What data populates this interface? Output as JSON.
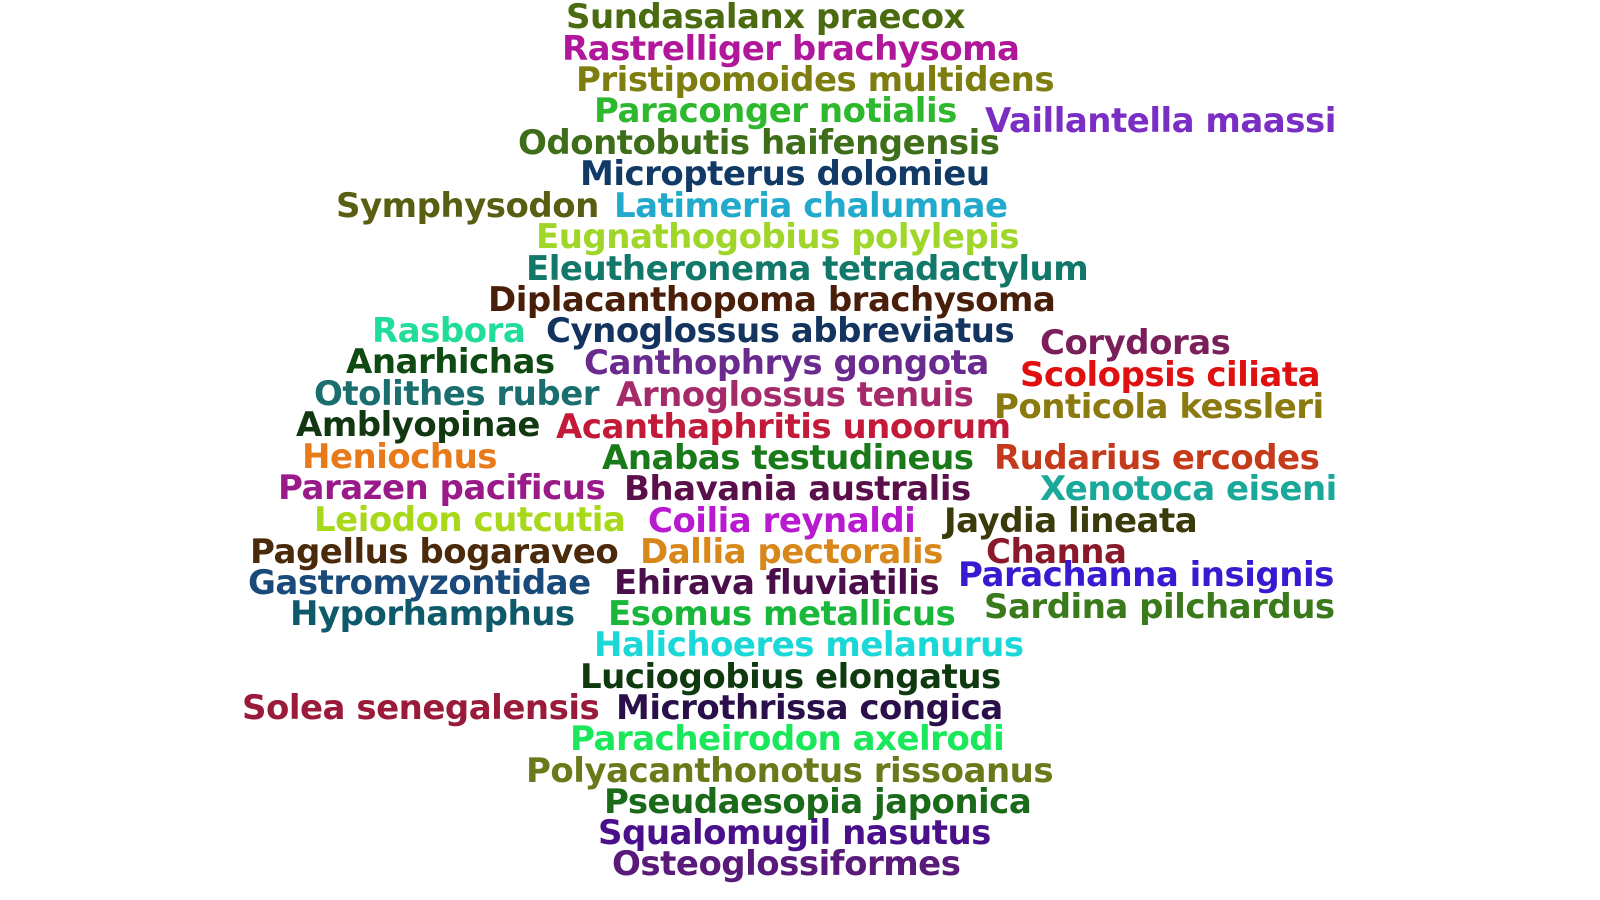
{
  "words": [
    {
      "text": "Sundasalanx praecox",
      "color": "#4a6b0f"
    },
    {
      "text": "Rastrelliger brachysoma",
      "color": "#b0179a"
    },
    {
      "text": "Pristipomoides multidens",
      "color": "#7d7d10"
    },
    {
      "text": "Paraconger notialis",
      "color": "#2eb82e"
    },
    {
      "text": "Vaillantella maassi",
      "color": "#7b2ec4"
    },
    {
      "text": "Odontobutis haifengensis",
      "color": "#3f6e1a"
    },
    {
      "text": "Micropterus dolomieu",
      "color": "#123a66"
    },
    {
      "text": "Symphysodon",
      "color": "#5a5e12"
    },
    {
      "text": "Latimeria chalumnae",
      "color": "#22aacc"
    },
    {
      "text": "Eugnathogobius polylepis",
      "color": "#a0d62a"
    },
    {
      "text": "Eleutheronema tetradactylum",
      "color": "#12786a"
    },
    {
      "text": "Diplacanthopoma brachysoma",
      "color": "#4a1f0a"
    },
    {
      "text": "Rasbora",
      "color": "#22dd99"
    },
    {
      "text": "Cynoglossus abbreviatus",
      "color": "#12345e"
    },
    {
      "text": "Corydoras",
      "color": "#7a1f5a"
    },
    {
      "text": "Anarhichas",
      "color": "#0f4a12"
    },
    {
      "text": "Canthophrys gongota",
      "color": "#6a2a8e"
    },
    {
      "text": "Scolopsis ciliata",
      "color": "#e01010"
    },
    {
      "text": "Otolithes ruber",
      "color": "#1a6e6e"
    },
    {
      "text": "Arnoglossus tenuis",
      "color": "#a52a6a"
    },
    {
      "text": "Ponticola kessleri",
      "color": "#8a7a10"
    },
    {
      "text": "Amblyopinae",
      "color": "#123812"
    },
    {
      "text": "Acanthaphritis unoorum",
      "color": "#c41a3a"
    },
    {
      "text": "Heniochus",
      "color": "#e87a1a"
    },
    {
      "text": "Anabas testudineus",
      "color": "#1a7a1a"
    },
    {
      "text": "Rudarius ercodes",
      "color": "#c43a1a"
    },
    {
      "text": "Parazen pacificus",
      "color": "#9a1a8a"
    },
    {
      "text": "Bhavania australis",
      "color": "#5a0f4a"
    },
    {
      "text": "Xenotoca eiseni",
      "color": "#1aa89a"
    },
    {
      "text": "Leiodon cutcutia",
      "color": "#a8d81a"
    },
    {
      "text": "Coilia reynaldi",
      "color": "#b81ad0"
    },
    {
      "text": "Jaydia lineata",
      "color": "#3a3a0a"
    },
    {
      "text": "Pagellus bogaraveo",
      "color": "#4a2a0a"
    },
    {
      "text": "Dallia pectoralis",
      "color": "#d8881a"
    },
    {
      "text": "Channa",
      "color": "#8a1a2a"
    },
    {
      "text": "Gastromyzontidae",
      "color": "#1a4a7a"
    },
    {
      "text": "Ehirava fluviatilis",
      "color": "#4a0f4a"
    },
    {
      "text": "Parachanna insignis",
      "color": "#3a1ad0"
    },
    {
      "text": "Hyporhamphus",
      "color": "#0f5a6a"
    },
    {
      "text": "Esomus metallicus",
      "color": "#1ab83a"
    },
    {
      "text": "Sardina pilchardus",
      "color": "#3a7a1a"
    },
    {
      "text": "Halichoeres melanurus",
      "color": "#1ad8d8"
    },
    {
      "text": "Luciogobius elongatus",
      "color": "#0f3a0f"
    },
    {
      "text": "Solea senegalensis",
      "color": "#9a1a3a"
    },
    {
      "text": "Microthrissa congica",
      "color": "#2a0f4a"
    },
    {
      "text": "Paracheirodon axelrodi",
      "color": "#1ae85a"
    },
    {
      "text": "Polyacanthonotus rissoanus",
      "color": "#6a7a1a"
    },
    {
      "text": "Pseudaesopia japonica",
      "color": "#1a6a1a"
    },
    {
      "text": "Squalomugil nasutus",
      "color": "#4a0f8a"
    },
    {
      "text": "Osteoglossiformes",
      "color": "#5a1a7a"
    }
  ]
}
